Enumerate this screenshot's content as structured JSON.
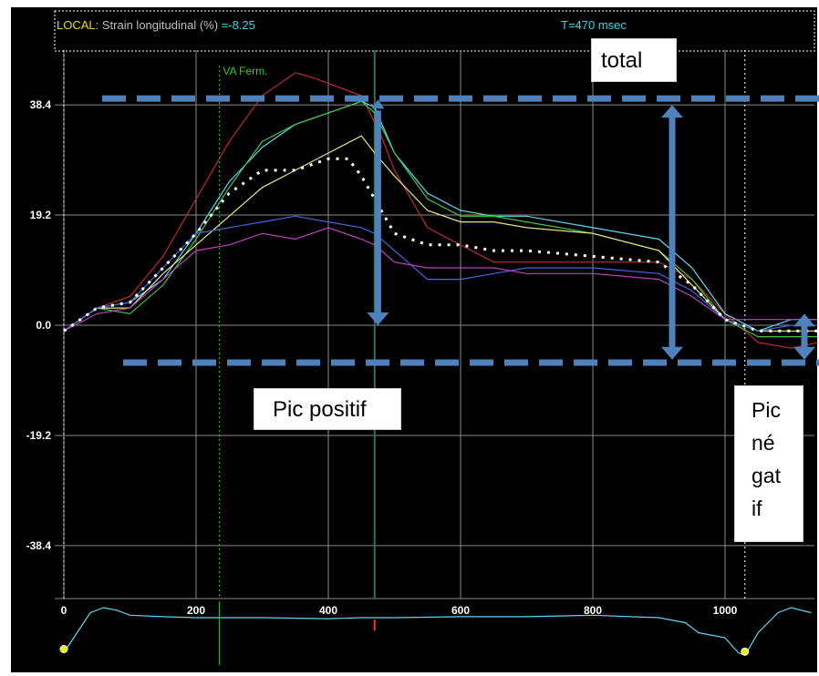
{
  "header": {
    "local_label": "LOCAL",
    "measure_label": ": Strain longitudinal (%) ",
    "measure_value": "=-8.25",
    "time_label": "T=470 msec",
    "marker_label": "VA Ferm."
  },
  "annotations": {
    "total": "total",
    "pic_positif": "Pic positif",
    "pic_negatif_lines": [
      "Pic",
      "né",
      "gat",
      "if"
    ]
  },
  "colors": {
    "background": "#000000",
    "grid": "#8a8a8a",
    "annotation": "#4f81bd",
    "header_local": "#e6e000",
    "header_value": "#33d6e6",
    "marker": "#33cc33"
  },
  "chart_data": {
    "type": "line",
    "title": "",
    "xlabel": "",
    "ylabel": "",
    "xlim": [
      -15,
      1130
    ],
    "ylim": [
      -57,
      57
    ],
    "xticks": [
      0,
      200,
      400,
      600,
      800,
      1000
    ],
    "yticks": [
      38.4,
      19.2,
      0.0,
      -19.2,
      -38.4
    ],
    "ytick_labels": [
      "38.4",
      "19.2",
      "0.0",
      "-19.2",
      "-38.4"
    ],
    "grid": true,
    "markers": {
      "va_ferm_x": 235,
      "current_time_x": 470,
      "cycle_end_x": 1030,
      "cycle_start_x": 0
    },
    "series": [
      {
        "color": "#c0282e",
        "x": [
          0,
          50,
          100,
          150,
          200,
          250,
          300,
          350,
          380,
          450,
          480,
          500,
          550,
          600,
          650,
          700,
          800,
          900,
          950,
          1000,
          1050,
          1100,
          1140
        ],
        "y": [
          -1,
          3,
          5,
          12,
          22,
          32,
          40,
          44,
          43,
          40,
          33,
          27,
          17,
          14,
          11,
          11,
          11,
          11,
          8,
          2,
          -3,
          -4,
          -3
        ]
      },
      {
        "color": "#5fd6f0",
        "x": [
          0,
          50,
          100,
          150,
          200,
          250,
          300,
          350,
          400,
          450,
          470,
          500,
          550,
          600,
          650,
          700,
          800,
          900,
          950,
          1000,
          1050,
          1100,
          1140
        ],
        "y": [
          -1,
          3,
          4,
          8,
          16,
          25,
          31,
          35,
          37,
          39,
          38,
          30,
          23,
          20,
          19,
          19,
          17,
          15,
          10,
          2,
          -1,
          1,
          1
        ]
      },
      {
        "color": "#44c444",
        "x": [
          0,
          50,
          100,
          150,
          200,
          250,
          300,
          350,
          400,
          450,
          470,
          500,
          550,
          600,
          650,
          700,
          800,
          900,
          950,
          1000,
          1050,
          1100,
          1140
        ],
        "y": [
          -1,
          3,
          2,
          7,
          15,
          24,
          32,
          35,
          37,
          39,
          37,
          30,
          22,
          19,
          19,
          18,
          16,
          13,
          8,
          1,
          -2,
          -2,
          -2
        ]
      },
      {
        "color": "#e6e680",
        "x": [
          0,
          50,
          100,
          150,
          200,
          250,
          300,
          350,
          400,
          450,
          470,
          500,
          550,
          600,
          650,
          700,
          800,
          900,
          950,
          1000,
          1050,
          1100,
          1140
        ],
        "y": [
          -1,
          3,
          3,
          9,
          14,
          19,
          24,
          27,
          30,
          33,
          30,
          26,
          20,
          18,
          18,
          17,
          16,
          13,
          7,
          1,
          -1,
          -1,
          -1
        ]
      },
      {
        "color": "#4466dd",
        "x": [
          0,
          50,
          100,
          150,
          200,
          250,
          300,
          350,
          400,
          450,
          470,
          500,
          550,
          600,
          650,
          700,
          800,
          900,
          950,
          1000,
          1050,
          1100,
          1140
        ],
        "y": [
          -1,
          3,
          4,
          10,
          16,
          17,
          18,
          19,
          18,
          17,
          16,
          13,
          8,
          8,
          9,
          10,
          10,
          9,
          6,
          1,
          -1,
          0,
          0
        ]
      },
      {
        "color": "#c040c0",
        "x": [
          0,
          50,
          100,
          150,
          200,
          250,
          300,
          350,
          400,
          450,
          470,
          500,
          550,
          600,
          650,
          700,
          800,
          900,
          950,
          1000,
          1050,
          1100,
          1140
        ],
        "y": [
          -1,
          2,
          3,
          8,
          13,
          14,
          16,
          15,
          17,
          15,
          14,
          11,
          10,
          10,
          10,
          9,
          9,
          8,
          5,
          1,
          1,
          1,
          1
        ]
      },
      {
        "color": "#ffffff",
        "dotted": true,
        "x": [
          0,
          50,
          100,
          150,
          200,
          250,
          300,
          350,
          400,
          430,
          450,
          470,
          500,
          550,
          600,
          650,
          700,
          800,
          900,
          950,
          1000,
          1050,
          1100,
          1140
        ],
        "y": [
          -1,
          3,
          4,
          10,
          16,
          23,
          27,
          27,
          29,
          29,
          26,
          22,
          16,
          14,
          14,
          13,
          13,
          12,
          11,
          7,
          1,
          -1,
          -1,
          -1
        ]
      }
    ]
  },
  "ecg": {
    "x": [
      0,
      20,
      40,
      60,
      80,
      100,
      150,
      200,
      300,
      400,
      450,
      500,
      600,
      700,
      800,
      900,
      940,
      960,
      1000,
      1020,
      1030,
      1050,
      1080,
      1100,
      1130
    ],
    "y": [
      0.1,
      0.5,
      0.9,
      1.0,
      0.95,
      0.85,
      0.82,
      0.8,
      0.8,
      0.78,
      0.8,
      0.8,
      0.82,
      0.82,
      0.85,
      0.8,
      0.7,
      0.5,
      0.4,
      0.1,
      0.05,
      0.5,
      0.9,
      1.0,
      0.9
    ],
    "dot_x": [
      0,
      1030
    ],
    "cursor_x": 470
  },
  "annotation_marks": {
    "dashed_top_y": 39.5,
    "dashed_bottom_y": -6.5,
    "arrows": [
      {
        "x": 475,
        "from": 39,
        "to": 0
      },
      {
        "x": 920,
        "from": 38.4,
        "to": -6
      },
      {
        "x": 1120,
        "from": 2,
        "to": -6
      }
    ]
  }
}
